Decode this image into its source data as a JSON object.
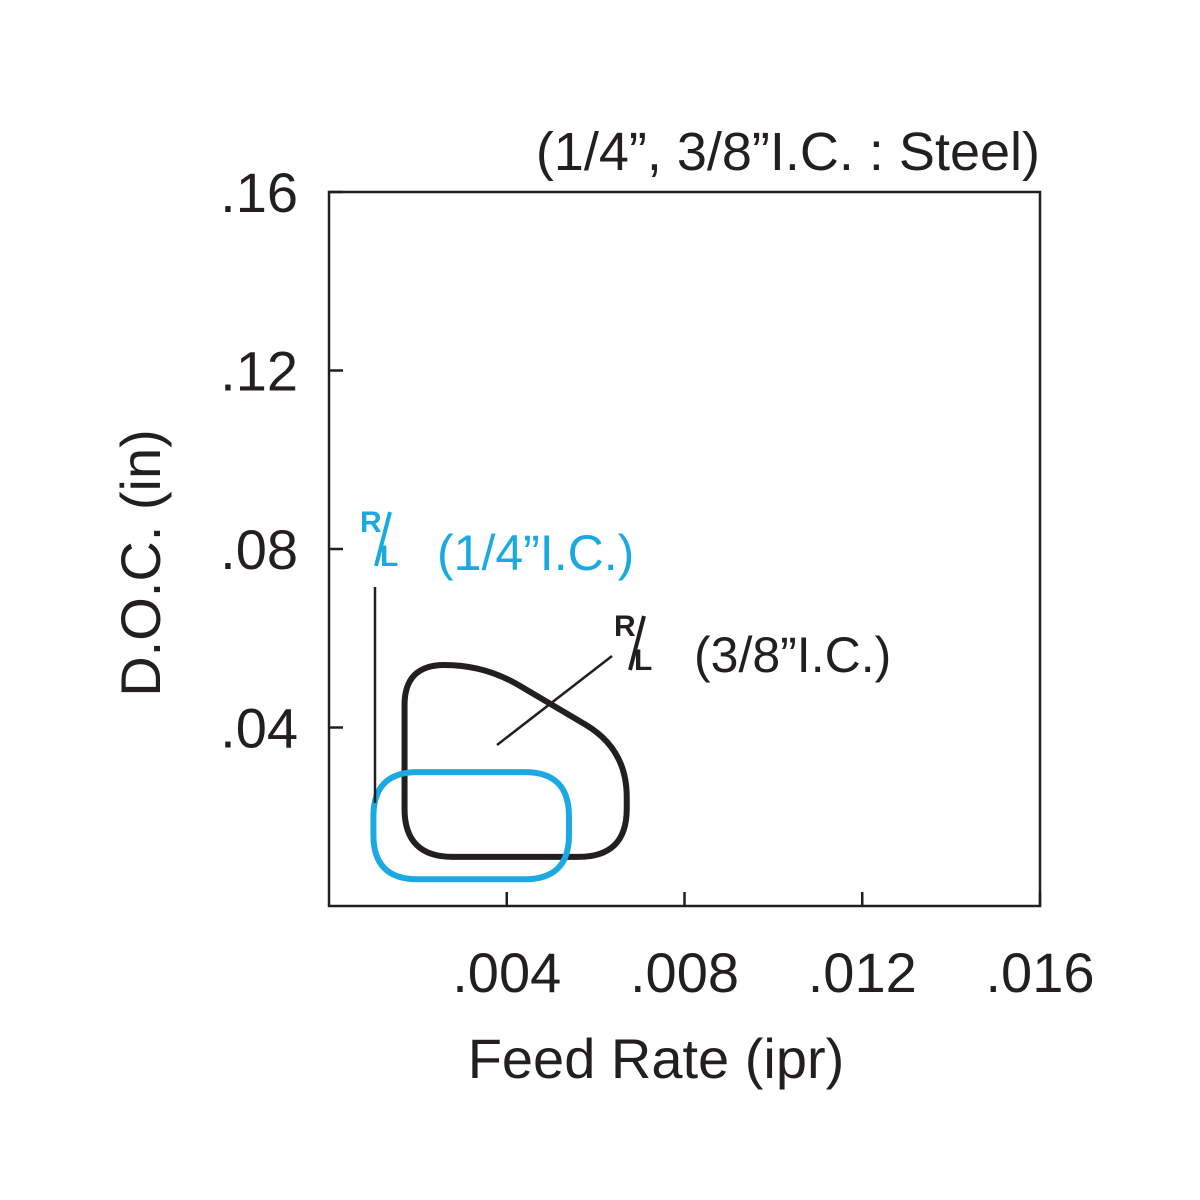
{
  "chart_data": {
    "type": "area",
    "title": "(1/4”, 3/8”I.C. : Steel)",
    "xlabel": "Feed Rate (ipr)",
    "ylabel": "D.O.C. (in)",
    "xlim": [
      0,
      0.016
    ],
    "ylim": [
      0,
      0.16
    ],
    "x_ticks": [
      0.004,
      0.008,
      0.012,
      0.016
    ],
    "x_tick_labels": [
      ".004",
      ".008",
      ".012",
      ".016"
    ],
    "y_ticks": [
      0.04,
      0.08,
      0.12,
      0.16
    ],
    "y_tick_labels": [
      ".04",
      ".08",
      ".12",
      ".16"
    ],
    "grid": false,
    "series": [
      {
        "label_rl_top": "R",
        "label_rl_bottom": "L",
        "label_text": "(3/8”I.C.)",
        "color": "#231f20",
        "region": {
          "x_min": 0.0017,
          "x_max": 0.0067,
          "y_min": 0.011,
          "y_max": 0.054,
          "chamfer_x": 0.0035,
          "chamfer_y": 0.0352
        }
      },
      {
        "label_rl_top": "R",
        "label_rl_bottom": "L",
        "label_text": "(1/4”I.C.)",
        "color": "#1ba9e1",
        "region": {
          "x_min": 0.001,
          "x_max": 0.0054,
          "y_min": 0.006,
          "y_max": 0.03
        }
      }
    ]
  }
}
